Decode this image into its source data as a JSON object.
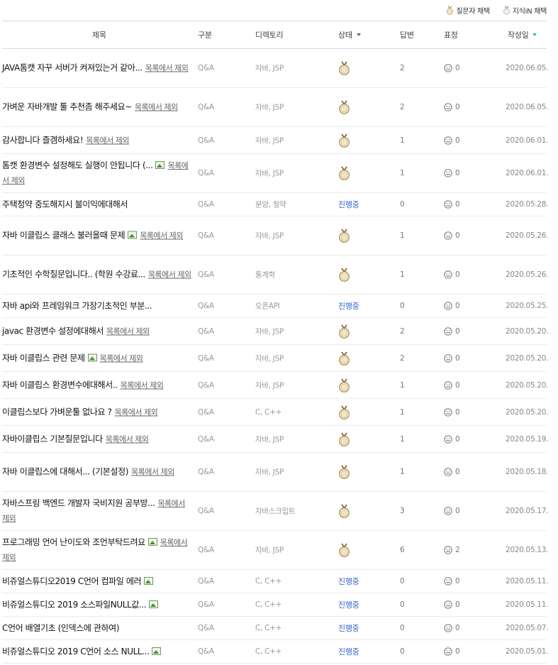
{
  "legend": {
    "asker_choice": "질문자 채택",
    "kin_choice": "지식iN 채택",
    "icon": "medal-icon"
  },
  "columns": {
    "title": "제목",
    "category": "구분",
    "directory": "디렉토리",
    "status": "상태",
    "answers": "답변",
    "expression": "표정",
    "date": "작성일"
  },
  "remove_label": "목록에서 제외",
  "status_in_progress": "진행중",
  "rows": [
    {
      "title": "JAVA톰캣 자꾸 서버가 켜져있는거 같아...",
      "has_image": false,
      "category": "Q&A",
      "directory": "자바, JSP",
      "status": "medal",
      "answers": "2",
      "expression": "0",
      "date": "2020.06.05."
    },
    {
      "title": "가벼운 자바개발 툴 추천좀 해주세요~",
      "has_image": false,
      "category": "Q&A",
      "directory": "자바, JSP",
      "status": "medal",
      "answers": "2",
      "expression": "0",
      "date": "2020.06.05."
    },
    {
      "title": "감사합니다 즐겜하세요!",
      "has_image": false,
      "category": "Q&A",
      "directory": "자바, JSP",
      "status": "medal",
      "answers": "1",
      "expression": "0",
      "date": "2020.06.01."
    },
    {
      "title": "톰캣 환경변수 설정해도 실행이 안됩니다 (...",
      "has_image": true,
      "category": "Q&A",
      "directory": "자바, JSP",
      "status": "medal",
      "answers": "1",
      "expression": "0",
      "date": "2020.06.01."
    },
    {
      "title": "주택청약 중도해지시 불이익에대해서",
      "has_image": false,
      "no_remove": true,
      "category": "Q&A",
      "directory": "분양, 청약",
      "status": "progress",
      "answers": "0",
      "expression": "0",
      "date": "2020.05.28."
    },
    {
      "title": "자바 이클립스 클래스 불러올때 문제",
      "has_image": true,
      "category": "Q&A",
      "directory": "자바, JSP",
      "status": "medal",
      "answers": "1",
      "expression": "0",
      "date": "2020.05.26."
    },
    {
      "title": "기초적인 수학질문입니다.. (학원 수강료...",
      "has_image": false,
      "category": "Q&A",
      "directory": "통계학",
      "status": "medal",
      "answers": "1",
      "expression": "0",
      "date": "2020.05.26."
    },
    {
      "title": "자바 api와 프레임워크 가장기초적인 부분...",
      "has_image": false,
      "no_remove": true,
      "category": "Q&A",
      "directory": "오픈API",
      "status": "progress",
      "answers": "0",
      "expression": "0",
      "date": "2020.05.25."
    },
    {
      "title": "javac 환경변수 설정에대해서",
      "has_image": false,
      "category": "Q&A",
      "directory": "자바, JSP",
      "status": "medal",
      "answers": "2",
      "expression": "0",
      "date": "2020.05.20."
    },
    {
      "title": "자바 이클립스 관련 문제",
      "has_image": true,
      "category": "Q&A",
      "directory": "자바, JSP",
      "status": "medal",
      "answers": "2",
      "expression": "0",
      "date": "2020.05.20."
    },
    {
      "title": "자바 이클립스 환경변수에대해서..",
      "has_image": false,
      "category": "Q&A",
      "directory": "자바, JSP",
      "status": "medal",
      "answers": "1",
      "expression": "0",
      "date": "2020.05.20."
    },
    {
      "title": "이클립스보다 가벼운툴 없나요 ?",
      "has_image": false,
      "category": "Q&A",
      "directory": "C, C++",
      "status": "medal",
      "answers": "1",
      "expression": "0",
      "date": "2020.05.20."
    },
    {
      "title": "자바이클립스 기본질문입니다",
      "has_image": false,
      "category": "Q&A",
      "directory": "자바, JSP",
      "status": "medal",
      "answers": "1",
      "expression": "0",
      "date": "2020.05.19."
    },
    {
      "title": "자바 이클립스에 대해서... (기본설정)",
      "has_image": false,
      "category": "Q&A",
      "directory": "자바, JSP",
      "status": "medal",
      "answers": "1",
      "expression": "0",
      "date": "2020.05.18."
    },
    {
      "title": "자바스프링 백엔드 개발자 국비지원 공부방...",
      "has_image": false,
      "category": "Q&A",
      "directory": "자바스크립트",
      "status": "medal",
      "answers": "3",
      "expression": "0",
      "date": "2020.05.17."
    },
    {
      "title": "프로그래밍 언어 난이도와 조언부탁드려요",
      "has_image": true,
      "category": "Q&A",
      "directory": "자바, JSP",
      "status": "medal",
      "answers": "6",
      "expression": "2",
      "date": "2020.05.13."
    },
    {
      "title": "비쥬얼스튜디오2019 C언어 컴파일 에러",
      "has_image": true,
      "no_remove": true,
      "category": "Q&A",
      "directory": "C, C++",
      "status": "progress",
      "answers": "0",
      "expression": "0",
      "date": "2020.05.11."
    },
    {
      "title": "비쥬얼스튜디오 2019 소스파일NULL값...",
      "has_image": true,
      "no_remove": true,
      "category": "Q&A",
      "directory": "C, C++",
      "status": "progress",
      "answers": "0",
      "expression": "0",
      "date": "2020.05.11."
    },
    {
      "title": "C언어 배열기초 (인덱스에 관하여)",
      "has_image": false,
      "no_remove": true,
      "category": "Q&A",
      "directory": "C, C++",
      "status": "progress",
      "answers": "0",
      "expression": "0",
      "date": "2020.05.07."
    },
    {
      "title": "비쥬얼스튜디오 2019 C언어 소스 NULL...",
      "has_image": true,
      "no_remove": true,
      "category": "Q&A",
      "directory": "C, C++",
      "status": "progress",
      "answers": "0",
      "expression": "0",
      "date": "2020.05.01."
    }
  ]
}
